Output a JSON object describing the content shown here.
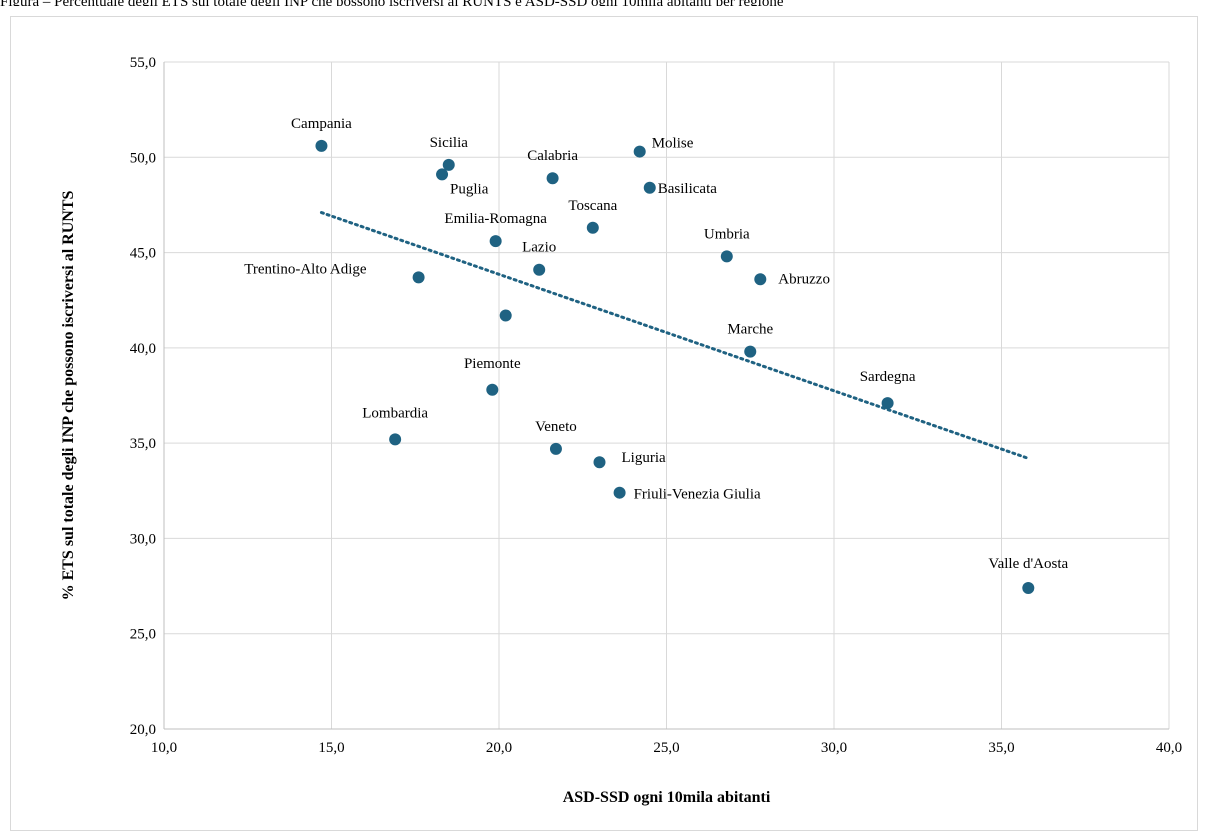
{
  "header_fragment": "Figura  –  Percentuale degli ETS sul totale degli INP che possono iscriversi al RUNTS e ASD-SSD ogni 10mila abitanti per regione",
  "chart_data": {
    "type": "scatter",
    "title": "",
    "xlabel": "ASD-SSD ogni 10mila abitanti",
    "ylabel": "% ETS sul totale degli INP che possono iscriversi al RUNTS",
    "xlim": [
      10,
      40
    ],
    "ylim": [
      20,
      55
    ],
    "xticks": [
      "10,0",
      "15,0",
      "20,0",
      "25,0",
      "30,0",
      "35,0",
      "40,0"
    ],
    "yticks": [
      "20,0",
      "25,0",
      "30,0",
      "35,0",
      "40,0",
      "45,0",
      "50,0",
      "55,0"
    ],
    "grid": true,
    "marker_color": "#1f6282",
    "trendline": {
      "color": "#1f6282",
      "style": "dotted",
      "x": [
        14.7,
        35.8
      ],
      "y": [
        47.1,
        34.2
      ]
    },
    "points": [
      {
        "label": "Campania",
        "x": 14.7,
        "y": 50.6
      },
      {
        "label": "Sicilia",
        "x": 18.5,
        "y": 49.6
      },
      {
        "label": "Puglia",
        "x": 18.3,
        "y": 49.1
      },
      {
        "label": "Calabria",
        "x": 21.6,
        "y": 48.9
      },
      {
        "label": "Molise",
        "x": 24.2,
        "y": 50.3
      },
      {
        "label": "Basilicata",
        "x": 24.5,
        "y": 48.4
      },
      {
        "label": "Toscana",
        "x": 22.8,
        "y": 46.3
      },
      {
        "label": "Emilia-Romagna",
        "x": 19.9,
        "y": 45.6
      },
      {
        "label": "Lazio",
        "x": 21.2,
        "y": 44.1
      },
      {
        "label": "Umbria",
        "x": 26.8,
        "y": 44.8
      },
      {
        "label": "Abruzzo",
        "x": 27.8,
        "y": 43.6
      },
      {
        "label": "Trentino-Alto Adige",
        "x": 17.6,
        "y": 43.7
      },
      {
        "label": "",
        "x": 20.2,
        "y": 41.7
      },
      {
        "label": "Marche",
        "x": 27.5,
        "y": 39.8
      },
      {
        "label": "Piemonte",
        "x": 19.8,
        "y": 37.8
      },
      {
        "label": "Sardegna",
        "x": 31.6,
        "y": 37.1
      },
      {
        "label": "Lombardia",
        "x": 16.9,
        "y": 35.2
      },
      {
        "label": "Veneto",
        "x": 21.7,
        "y": 34.7
      },
      {
        "label": "Liguria",
        "x": 23.0,
        "y": 34.0
      },
      {
        "label": "Friuli-Venezia Giulia",
        "x": 23.6,
        "y": 32.4
      },
      {
        "label": "Valle d'Aosta",
        "x": 35.8,
        "y": 27.4
      }
    ]
  }
}
